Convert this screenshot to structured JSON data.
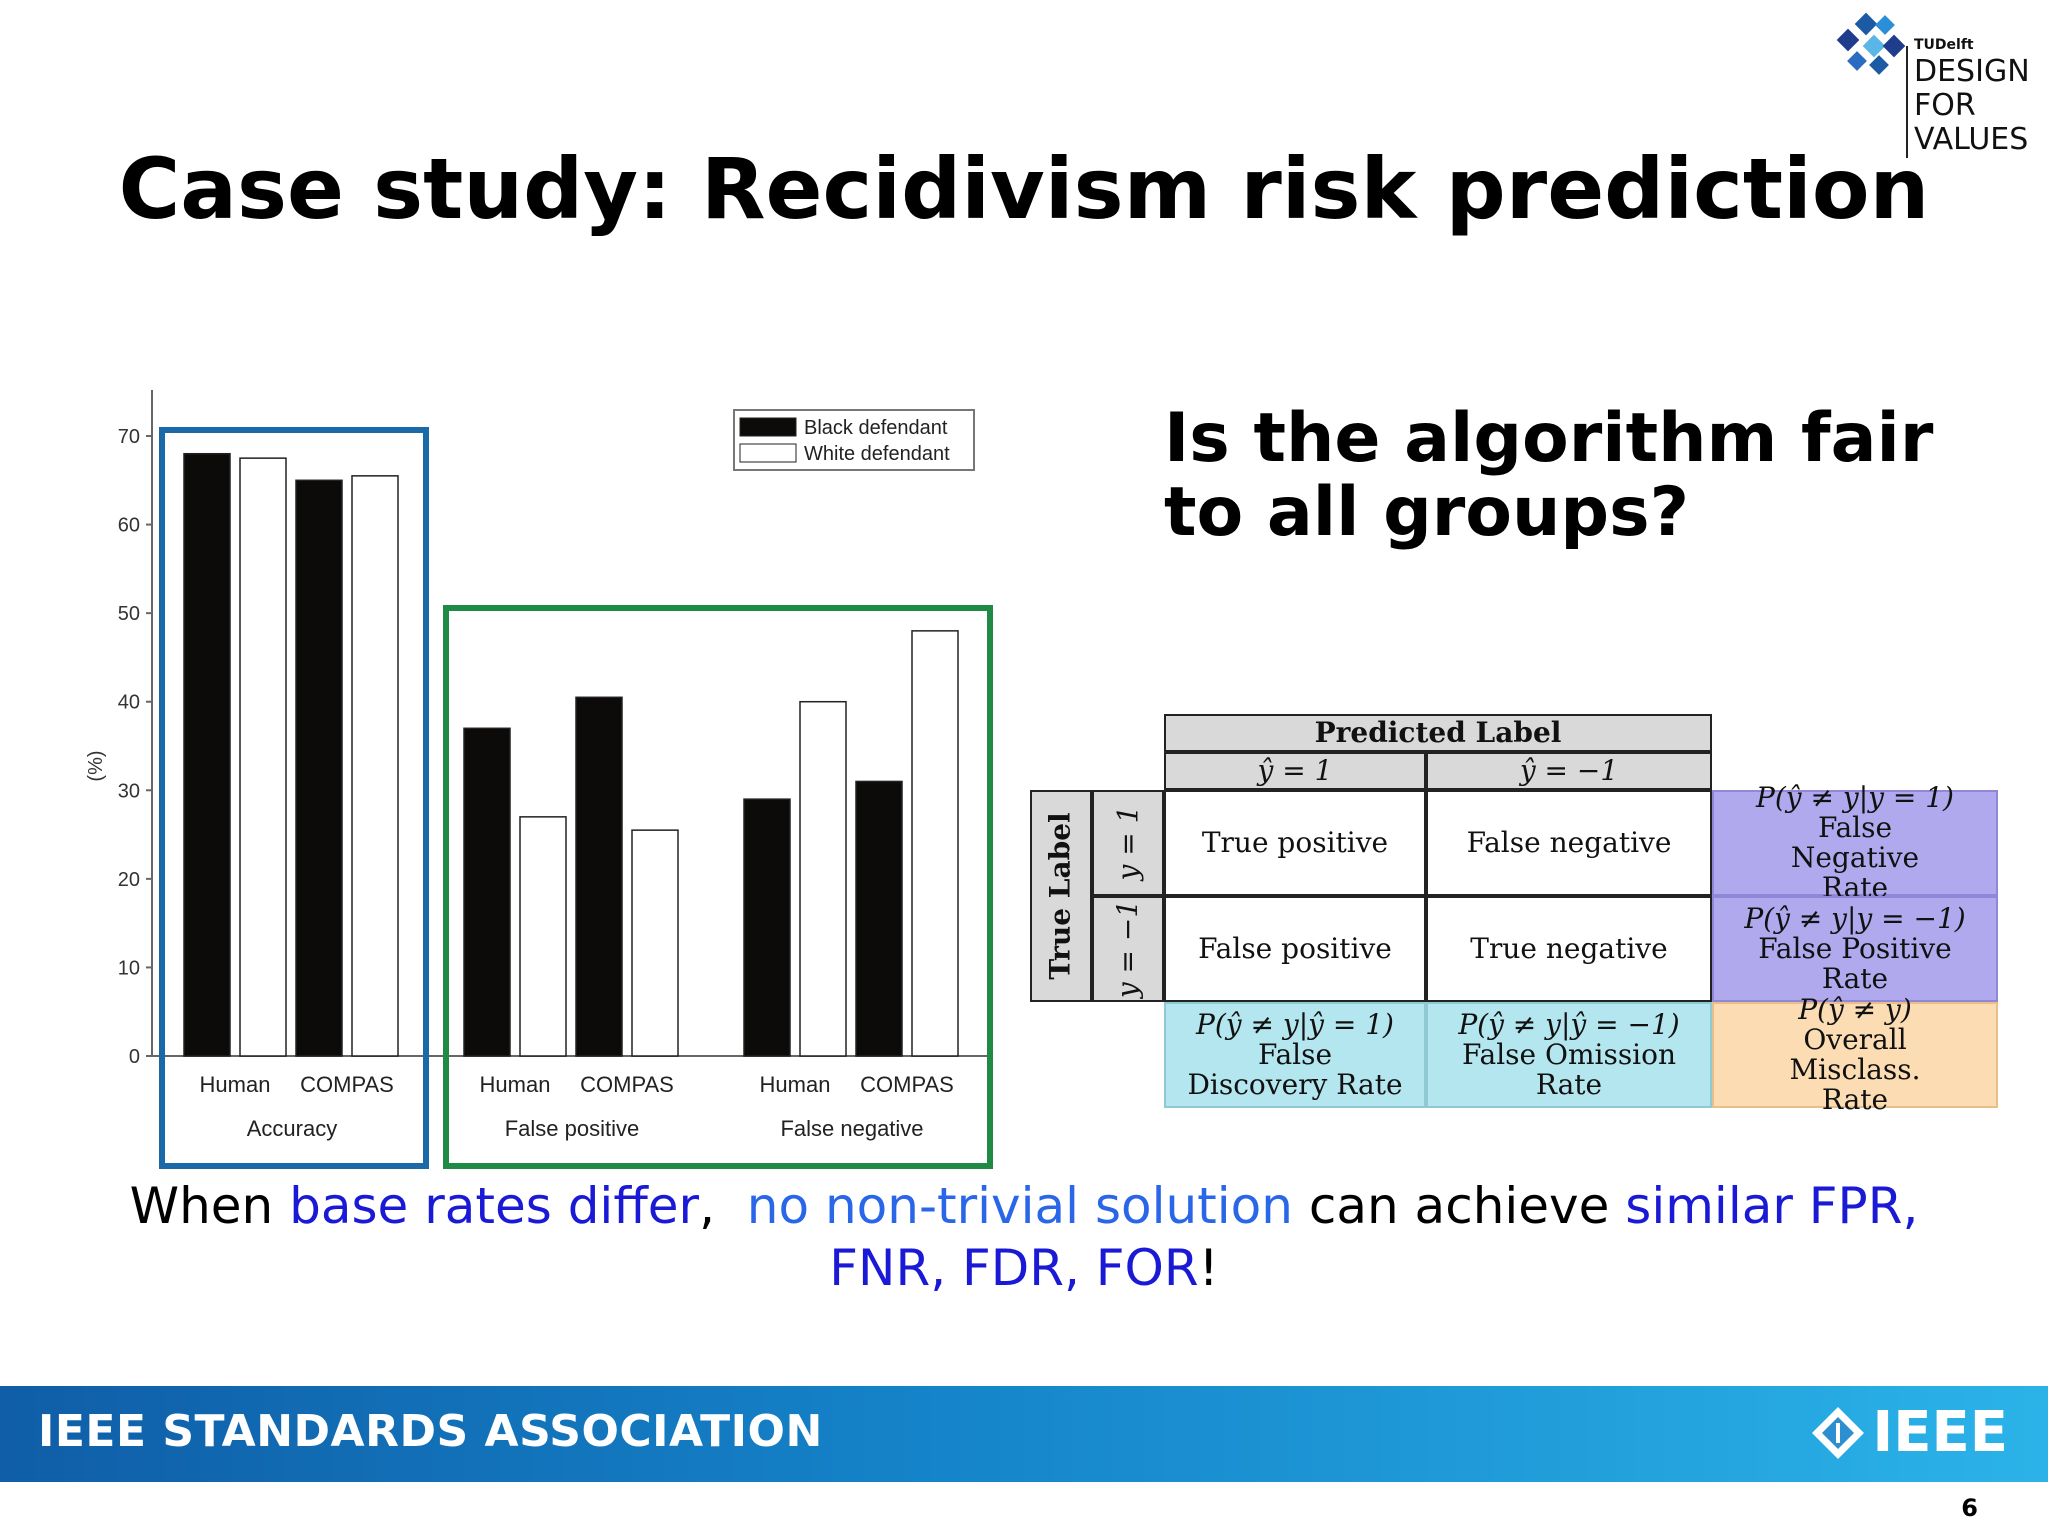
{
  "logo": {
    "org": "TUDelft",
    "lines": [
      "DESIGN",
      "FOR",
      "VALUES"
    ]
  },
  "title": "Case study: Recidivism risk prediction",
  "question": "Is the algorithm fair to all groups?",
  "chart_data": {
    "type": "bar",
    "ylabel": "(%)",
    "ylim": [
      0,
      70
    ],
    "yticks": [
      0,
      10,
      20,
      30,
      40,
      50,
      60,
      70
    ],
    "series": [
      {
        "name": "Black defendant",
        "color": "#0d0a0a"
      },
      {
        "name": "White defendant",
        "color": "#ffffff"
      }
    ],
    "groups": [
      {
        "label": "Accuracy",
        "pairs": [
          {
            "label": "Human",
            "values": [
              68,
              67.5
            ]
          },
          {
            "label": "COMPAS",
            "values": [
              65,
              65.5
            ]
          }
        ]
      },
      {
        "label": "False positive",
        "pairs": [
          {
            "label": "Human",
            "values": [
              37,
              27
            ]
          },
          {
            "label": "COMPAS",
            "values": [
              40.5,
              25.5
            ]
          }
        ]
      },
      {
        "label": "False negative",
        "pairs": [
          {
            "label": "Human",
            "values": [
              29,
              40
            ]
          },
          {
            "label": "COMPAS",
            "values": [
              31,
              48
            ]
          }
        ]
      }
    ],
    "legend_position": "top-right",
    "highlight_colors": {
      "accuracy": "#1a6aa8",
      "errors": "#1f8a45"
    }
  },
  "confusion_matrix": {
    "header": "Predicted Label",
    "col_labels": [
      "ŷ = 1",
      "ŷ = −1"
    ],
    "row_header": "True Label",
    "row_labels": [
      "y = 1",
      "y = −1"
    ],
    "cells": [
      [
        "True positive",
        "False negative"
      ],
      [
        "False positive",
        "True negative"
      ]
    ],
    "row_rates": [
      {
        "formula": "P(ŷ ≠ y|y = 1)",
        "name": "False Negative Rate"
      },
      {
        "formula": "P(ŷ ≠ y|y = −1)",
        "name": "False Positive Rate"
      }
    ],
    "col_rates": [
      {
        "formula": "P(ŷ ≠ y|ŷ = 1)",
        "name": "False Discovery Rate"
      },
      {
        "formula": "P(ŷ ≠ y|ŷ = −1)",
        "name": "False Omission Rate"
      }
    ],
    "overall": {
      "formula": "P(ŷ ≠ y)",
      "name": "Overall Misclass. Rate"
    },
    "colors": {
      "header": "#d9d9d9",
      "rate_purple": "#b0a9ee",
      "rate_cyan": "#b3e6ef",
      "overall": "#fbdcb3"
    }
  },
  "bottom_text": {
    "p1": "When ",
    "p2": "base rates differ",
    "p3": ",  ",
    "p4": "no non-trivial solution",
    "p5": " can achieve ",
    "p6": "similar FPR,",
    "p7": "FNR, FDR, FOR",
    "p8": "!"
  },
  "footer": {
    "left": "IEEE STANDARDS ASSOCIATION",
    "right": "IEEE"
  },
  "page_number": "6"
}
